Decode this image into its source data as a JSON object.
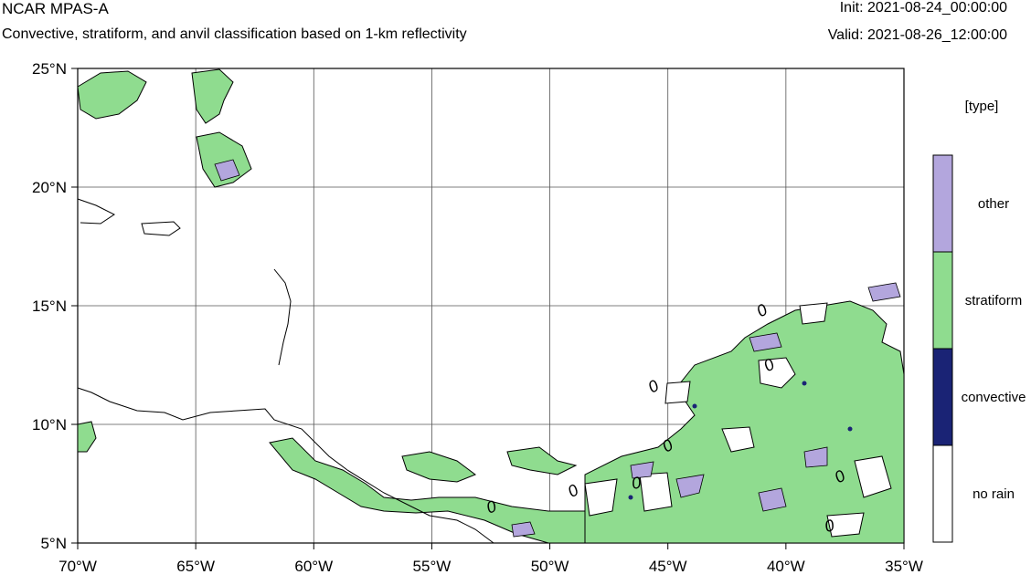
{
  "header": {
    "model": "NCAR MPAS-A",
    "subtitle": "Convective, stratiform, and anvil classification based on 1-km reflectivity",
    "init": "Init: 2021-08-24_00:00:00",
    "valid": "Valid: 2021-08-26_12:00:00"
  },
  "map": {
    "lon_range": [
      -70,
      -35
    ],
    "lat_range": [
      5,
      25
    ],
    "x_ticks": [
      "70°W",
      "65°W",
      "60°W",
      "55°W",
      "50°W",
      "45°W",
      "40°W",
      "35°W"
    ],
    "y_ticks": [
      "25°N",
      "20°N",
      "15°N",
      "10°N",
      "5°N"
    ],
    "contour_label": "0"
  },
  "legend": {
    "title": "[type]",
    "items": [
      {
        "label": "other",
        "color": "#b3a6dd"
      },
      {
        "label": "stratiform",
        "color": "#8fdc8f"
      },
      {
        "label": "convective",
        "color": "#1a2375"
      },
      {
        "label": "no rain",
        "color": "#ffffff"
      }
    ]
  },
  "colors": {
    "stratiform": "#8fdc8f",
    "other": "#b3a6dd",
    "convective": "#1a2375"
  }
}
